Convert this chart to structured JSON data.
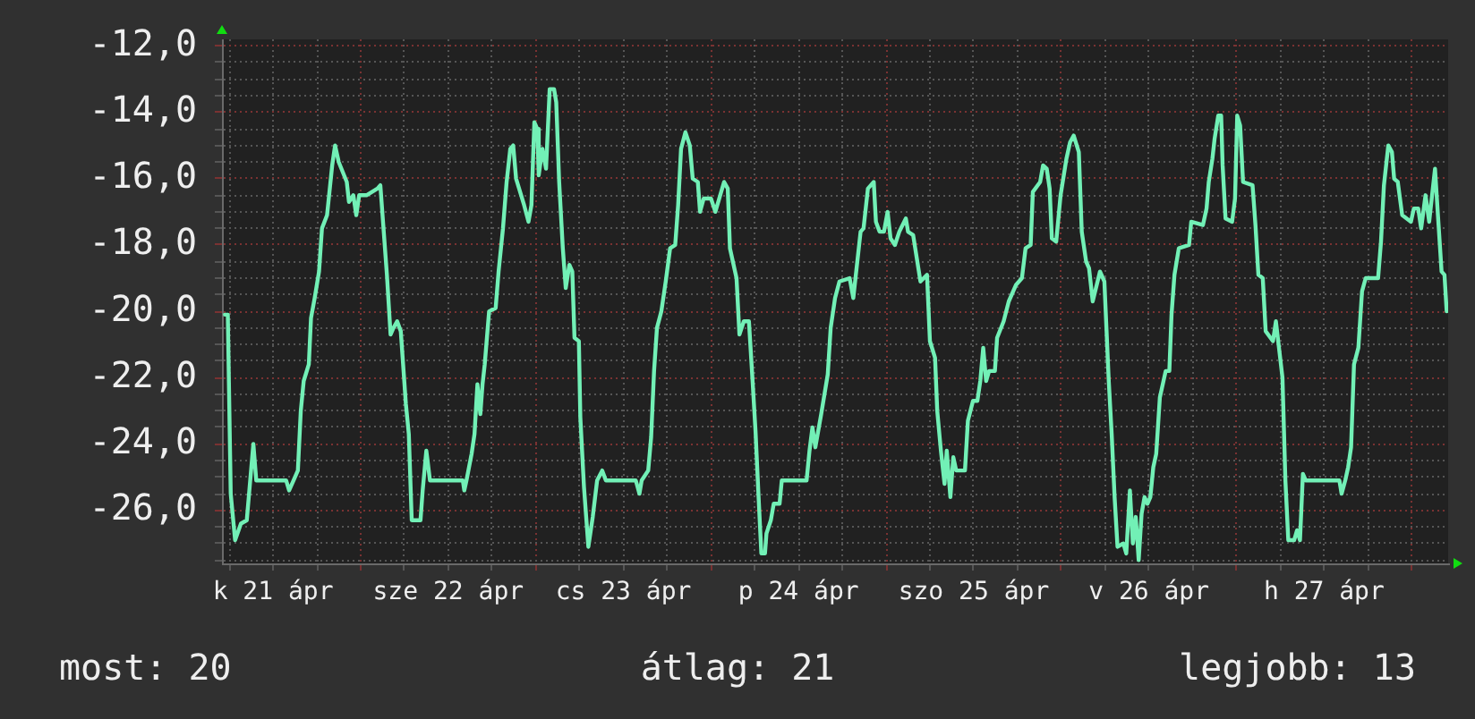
{
  "chart_data": {
    "type": "line",
    "color": "#72f0b6",
    "grid": true,
    "xlim": [
      "--04-21T05:00",
      "--04-28T05:00"
    ],
    "ylim": [
      -27.6,
      -11.8
    ],
    "xticks": [
      {
        "value": "--04-21T06:00",
        "label": null
      },
      {
        "value": "--04-21T12:00",
        "label": "k 21 ápr"
      },
      {
        "value": "--04-21T18:00",
        "label": null
      },
      {
        "value": "--04-22T00:00",
        "label": null
      },
      {
        "value": "--04-22T06:00",
        "label": null
      },
      {
        "value": "--04-22T12:00",
        "label": "sze 22 ápr"
      },
      {
        "value": "--04-22T18:00",
        "label": null
      },
      {
        "value": "--04-23T00:00",
        "label": null
      },
      {
        "value": "--04-23T06:00",
        "label": null
      },
      {
        "value": "--04-23T12:00",
        "label": "cs 23 ápr"
      },
      {
        "value": "--04-23T18:00",
        "label": null
      },
      {
        "value": "--04-24T00:00",
        "label": null
      },
      {
        "value": "--04-24T06:00",
        "label": null
      },
      {
        "value": "--04-24T12:00",
        "label": "p 24 ápr"
      },
      {
        "value": "--04-24T18:00",
        "label": null
      },
      {
        "value": "--04-25T00:00",
        "label": null
      },
      {
        "value": "--04-25T06:00",
        "label": null
      },
      {
        "value": "--04-25T12:00",
        "label": "szo 25 ápr"
      },
      {
        "value": "--04-25T18:00",
        "label": null
      },
      {
        "value": "--04-26T00:00",
        "label": null
      },
      {
        "value": "--04-26T06:00",
        "label": null
      },
      {
        "value": "--04-26T12:00",
        "label": "v 26 ápr"
      },
      {
        "value": "--04-26T18:00",
        "label": null
      },
      {
        "value": "--04-27T00:00",
        "label": null
      },
      {
        "value": "--04-27T06:00",
        "label": null
      },
      {
        "value": "--04-27T12:00",
        "label": "h 27 ápr"
      },
      {
        "value": "--04-27T18:00",
        "label": null
      },
      {
        "value": "--04-28T00:00",
        "label": null
      }
    ],
    "yticks": [
      {
        "value": -27.5,
        "label": null
      },
      {
        "value": -27,
        "label": null
      },
      {
        "value": -26.5,
        "label": null
      },
      {
        "value": -26,
        "label": "-26,0"
      },
      {
        "value": -25.5,
        "label": null
      },
      {
        "value": -25,
        "label": null
      },
      {
        "value": -24.5,
        "label": null
      },
      {
        "value": -24,
        "label": "-24,0"
      },
      {
        "value": -23.5,
        "label": null
      },
      {
        "value": -23,
        "label": null
      },
      {
        "value": -22.5,
        "label": null
      },
      {
        "value": -22,
        "label": "-22,0"
      },
      {
        "value": -21.5,
        "label": null
      },
      {
        "value": -21,
        "label": null
      },
      {
        "value": -20.5,
        "label": null
      },
      {
        "value": -20,
        "label": "-20,0"
      },
      {
        "value": -19.5,
        "label": null
      },
      {
        "value": -19,
        "label": null
      },
      {
        "value": -18.5,
        "label": null
      },
      {
        "value": -18,
        "label": "-18,0"
      },
      {
        "value": -17.5,
        "label": null
      },
      {
        "value": -17,
        "label": null
      },
      {
        "value": -16.5,
        "label": null
      },
      {
        "value": -16,
        "label": "-16,0"
      },
      {
        "value": -15.5,
        "label": null
      },
      {
        "value": -15,
        "label": null
      },
      {
        "value": -14.5,
        "label": null
      },
      {
        "value": -14,
        "label": "-14,0"
      },
      {
        "value": -13.5,
        "label": null
      },
      {
        "value": -13,
        "label": null
      },
      {
        "value": -12.5,
        "label": null
      },
      {
        "value": -12,
        "label": "-12,0"
      }
    ],
    "annotations": [
      "most: 20",
      "átlag: 21",
      "legjobb: 13"
    ],
    "x": [
      "--04-21T05:24",
      "--04-21T05:48",
      "--04-21T06:12",
      "--04-21T06:48",
      "--04-21T07:36",
      "--04-21T08:24",
      "--04-21T09:18",
      "--04-21T09:42",
      "--04-21T13:48",
      "--04-21T14:12",
      "--04-21T14:48",
      "--04-21T15:24",
      "--04-21T15:48",
      "--04-21T16:12",
      "--04-21T16:54",
      "--04-21T17:12",
      "--04-21T17:42",
      "--04-21T18:18",
      "--04-21T18:42",
      "--04-21T19:24",
      "--04-21T20:06",
      "--04-21T20:30",
      "--04-21T21:00",
      "--04-21T22:06",
      "--04-21T22:24",
      "--04-21T23:00",
      "--04-21T23:24",
      "--04-21T23:48",
      "--04-22T00:48",
      "--04-22T02:18",
      "--04-22T02:42",
      "--04-22T03:36",
      "--04-22T04:06",
      "--04-22T04:30",
      "--04-22T05:00",
      "--04-22T05:30",
      "--04-22T06:12",
      "--04-22T06:36",
      "--04-22T07:00",
      "--04-22T08:12",
      "--04-22T08:30",
      "--04-22T09:00",
      "--04-22T09:30",
      "--04-22T14:00",
      "--04-22T14:12",
      "--04-22T14:30",
      "--04-22T15:12",
      "--04-22T15:36",
      "--04-22T16:00",
      "--04-22T16:24",
      "--04-22T16:42",
      "--04-22T17:00",
      "--04-22T17:36",
      "--04-22T18:30",
      "--04-22T18:54",
      "--04-22T19:30",
      "--04-22T20:00",
      "--04-22T20:30",
      "--04-22T20:54",
      "--04-22T21:18",
      "--04-22T22:24",
      "--04-22T23:00",
      "--04-22T23:24",
      "--04-22T23:48",
      "--04-23T00:12",
      "--04-23T00:24",
      "--04-23T00:54",
      "--04-23T01:24",
      "--04-23T01:54",
      "--04-23T02:30",
      "--04-23T02:48",
      "--04-23T03:12",
      "--04-23T03:42",
      "--04-23T04:06",
      "--04-23T04:36",
      "--04-23T05:00",
      "--04-23T05:18",
      "--04-23T05:54",
      "--04-23T06:06",
      "--04-23T06:36",
      "--04-23T07:12",
      "--04-23T07:48",
      "--04-23T08:24",
      "--04-23T09:06",
      "--04-23T09:36",
      "--04-23T13:42",
      "--04-23T14:12",
      "--04-23T14:30",
      "--04-23T15:24",
      "--04-23T15:48",
      "--04-23T16:12",
      "--04-23T16:36",
      "--04-23T17:12",
      "--04-23T17:48",
      "--04-23T18:24",
      "--04-23T19:06",
      "--04-23T19:30",
      "--04-23T19:54",
      "--04-23T20:30",
      "--04-23T21:06",
      "--04-23T21:30",
      "--04-23T22:12",
      "--04-23T22:30",
      "--04-23T23:00",
      "--04-24T00:00",
      "--04-24T00:36",
      "--04-24T01:48",
      "--04-24T02:18",
      "--04-24T02:36",
      "--04-24T03:30",
      "--04-24T03:54",
      "--04-24T04:30",
      "--04-24T05:12",
      "--04-24T05:42",
      "--04-24T06:06",
      "--04-24T06:30",
      "--04-24T06:54",
      "--04-24T07:24",
      "--04-24T07:36",
      "--04-24T08:12",
      "--04-24T08:36",
      "--04-24T09:24",
      "--04-24T09:42",
      "--04-24T13:06",
      "--04-24T13:30",
      "--04-24T13:54",
      "--04-24T14:18",
      "--04-24T14:42",
      "--04-24T15:06",
      "--04-24T16:00",
      "--04-24T16:24",
      "--04-24T17:00",
      "--04-24T17:36",
      "--04-24T19:00",
      "--04-24T19:30",
      "--04-24T19:48",
      "--04-24T20:30",
      "--04-24T20:54",
      "--04-24T21:30",
      "--04-24T22:18",
      "--04-24T22:36",
      "--04-24T23:06",
      "--04-24T23:42",
      "--04-25T00:12",
      "--04-25T00:36",
      "--04-25T01:12",
      "--04-25T01:48",
      "--04-25T02:42",
      "--04-25T03:00",
      "--04-25T03:42",
      "--04-25T04:12",
      "--04-25T04:42",
      "--04-25T05:36",
      "--04-25T06:00",
      "--04-25T06:42",
      "--04-25T07:00",
      "--04-25T07:30",
      "--04-25T08:00",
      "--04-25T08:18",
      "--04-25T08:48",
      "--04-25T09:12",
      "--04-25T09:36",
      "--04-25T10:48",
      "--04-25T11:12",
      "--04-25T11:54",
      "--04-25T12:30",
      "--04-25T12:54",
      "--04-25T13:18",
      "--04-25T13:42",
      "--04-25T14:06",
      "--04-25T14:54",
      "--04-25T15:12",
      "--04-25T16:06",
      "--04-25T16:48",
      "--04-25T17:48",
      "--04-25T18:36",
      "--04-25T19:06",
      "--04-25T19:48",
      "--04-25T20:06",
      "--04-25T21:06",
      "--04-25T21:30",
      "--04-25T22:00",
      "--04-25T22:24",
      "--04-25T22:42",
      "--04-25T23:18",
      "--04-25T23:54",
      "--04-26T00:42",
      "--04-26T01:12",
      "--04-26T01:42",
      "--04-26T02:24",
      "--04-26T02:48",
      "--04-26T03:24",
      "--04-26T03:48",
      "--04-26T04:18",
      "--04-26T05:18",
      "--04-26T05:54",
      "--04-26T06:30",
      "--04-26T06:54",
      "--04-26T07:18",
      "--04-26T07:42",
      "--04-26T08:30",
      "--04-26T08:54",
      "--04-26T09:24",
      "--04-26T09:48",
      "--04-26T10:12",
      "--04-26T10:36",
      "--04-26T11:00",
      "--04-26T11:24",
      "--04-26T11:48",
      "--04-26T12:12",
      "--04-26T12:36",
      "--04-26T13:00",
      "--04-26T13:30",
      "--04-26T14:18",
      "--04-26T14:48",
      "--04-26T15:06",
      "--04-26T15:30",
      "--04-26T16:06",
      "--04-26T17:30",
      "--04-26T17:48",
      "--04-26T19:24",
      "--04-26T19:54",
      "--04-26T20:12",
      "--04-26T20:42",
      "--04-26T21:00",
      "--04-26T21:30",
      "--04-26T21:54",
      "--04-26T22:06",
      "--04-26T22:30",
      "--04-26T23:24",
      "--04-26T23:48",
      "--04-27T00:06",
      "--04-27T00:30",
      "--04-27T00:54",
      "--04-27T02:12",
      "--04-27T02:36",
      "--04-27T03:00",
      "--04-27T03:36",
      "--04-27T04:00",
      "--04-27T05:00",
      "--04-27T05:24",
      "--04-27T06:18",
      "--04-27T06:42",
      "--04-27T07:06",
      "--04-27T07:54",
      "--04-27T08:18",
      "--04-27T08:42",
      "--04-27T09:06",
      "--04-27T09:30",
      "--04-27T14:06",
      "--04-27T14:24",
      "--04-27T14:54",
      "--04-27T15:18",
      "--04-27T15:42",
      "--04-27T16:06",
      "--04-27T16:42",
      "--04-27T17:12",
      "--04-27T17:42",
      "--04-27T19:24",
      "--04-27T19:48",
      "--04-27T20:12",
      "--04-27T20:48",
      "--04-27T21:18",
      "--04-27T21:36",
      "--04-27T22:06",
      "--04-27T22:42",
      "--04-27T23:54",
      "--04-28T00:18",
      "--04-28T00:54",
      "--04-28T01:18",
      "--04-28T01:54",
      "--04-28T02:24",
      "--04-28T02:42",
      "--04-28T03:12",
      "--04-28T03:36",
      "--04-28T04:06",
      "--04-28T04:30",
      "--04-28T04:48"
    ],
    "values": [
      -20.1,
      -20.1,
      -25.5,
      -26.9,
      -26.4,
      -26.3,
      -24.0,
      -25.1,
      -25.1,
      -25.4,
      -25.1,
      -24.8,
      -23.0,
      -22.1,
      -21.6,
      -20.2,
      -19.6,
      -18.8,
      -17.5,
      -17.1,
      -15.6,
      -15.0,
      -15.5,
      -16.1,
      -16.7,
      -16.5,
      -17.1,
      -16.5,
      -16.5,
      -16.3,
      -16.2,
      -18.9,
      -20.7,
      -20.5,
      -20.3,
      -20.6,
      -22.8,
      -23.7,
      -26.3,
      -26.3,
      -25.4,
      -24.2,
      -25.1,
      -25.1,
      -25.4,
      -25.1,
      -24.3,
      -23.7,
      -22.2,
      -23.1,
      -22.2,
      -21.6,
      -20.0,
      -19.9,
      -18.8,
      -17.5,
      -16.1,
      -15.1,
      -15.0,
      -16.0,
      -16.8,
      -17.3,
      -16.8,
      -14.3,
      -14.5,
      -15.9,
      -15.1,
      -15.7,
      -13.3,
      -13.3,
      -13.7,
      -16.1,
      -18.1,
      -19.3,
      -18.6,
      -18.8,
      -20.8,
      -20.9,
      -23.2,
      -25.3,
      -27.1,
      -26.2,
      -25.1,
      -24.8,
      -25.1,
      -25.1,
      -25.5,
      -25.1,
      -24.8,
      -23.8,
      -21.8,
      -20.5,
      -20.0,
      -19.1,
      -18.1,
      -18.0,
      -16.8,
      -15.1,
      -14.6,
      -15.0,
      -16.0,
      -16.1,
      -17.0,
      -16.6,
      -16.6,
      -17.0,
      -16.1,
      -16.3,
      -18.1,
      -19.0,
      -20.7,
      -20.3,
      -20.3,
      -22.1,
      -23.6,
      -25.5,
      -27.3,
      -27.3,
      -26.7,
      -26.3,
      -25.8,
      -25.8,
      -25.1,
      -25.1,
      -24.2,
      -23.5,
      -24.1,
      -23.6,
      -23.1,
      -21.9,
      -20.5,
      -19.6,
      -19.1,
      -19.0,
      -19.6,
      -19.0,
      -17.6,
      -17.5,
      -16.3,
      -16.1,
      -17.3,
      -17.6,
      -17.6,
      -17.0,
      -17.8,
      -18.0,
      -17.6,
      -17.2,
      -17.6,
      -17.7,
      -18.4,
      -19.1,
      -18.9,
      -20.9,
      -21.4,
      -23.0,
      -24.2,
      -25.2,
      -24.2,
      -25.6,
      -24.4,
      -24.8,
      -24.8,
      -23.3,
      -22.7,
      -22.7,
      -22.1,
      -21.1,
      -22.1,
      -21.8,
      -21.8,
      -20.8,
      -20.3,
      -19.7,
      -19.2,
      -19.0,
      -18.1,
      -18.0,
      -16.4,
      -16.1,
      -15.6,
      -15.7,
      -16.3,
      -17.8,
      -17.9,
      -16.5,
      -15.4,
      -14.9,
      -14.7,
      -15.2,
      -17.6,
      -18.5,
      -18.7,
      -19.7,
      -18.8,
      -19.1,
      -22.1,
      -23.7,
      -25.6,
      -27.1,
      -27.0,
      -27.3,
      -25.4,
      -27.0,
      -26.2,
      -27.5,
      -26.1,
      -25.6,
      -25.8,
      -25.6,
      -24.7,
      -24.3,
      -22.6,
      -21.8,
      -21.8,
      -20.1,
      -18.9,
      -18.1,
      -18.0,
      -17.3,
      -17.4,
      -16.9,
      -16.1,
      -15.4,
      -14.8,
      -14.1,
      -14.1,
      -15.6,
      -17.2,
      -17.3,
      -16.6,
      -14.1,
      -14.4,
      -16.1,
      -16.2,
      -17.4,
      -18.9,
      -19.0,
      -20.6,
      -20.9,
      -20.3,
      -22.0,
      -25.1,
      -26.9,
      -26.9,
      -26.6,
      -26.9,
      -24.9,
      -25.1,
      -25.1,
      -25.5,
      -25.1,
      -24.7,
      -24.1,
      -21.6,
      -21.1,
      -19.4,
      -19.0,
      -19.0,
      -17.9,
      -16.2,
      -15.0,
      -15.2,
      -16.0,
      -16.1,
      -17.1,
      -17.3,
      -16.9,
      -16.9,
      -17.5,
      -16.5,
      -17.3,
      -16.7,
      -15.7,
      -17.1,
      -18.8,
      -18.9,
      -20.0
    ]
  }
}
